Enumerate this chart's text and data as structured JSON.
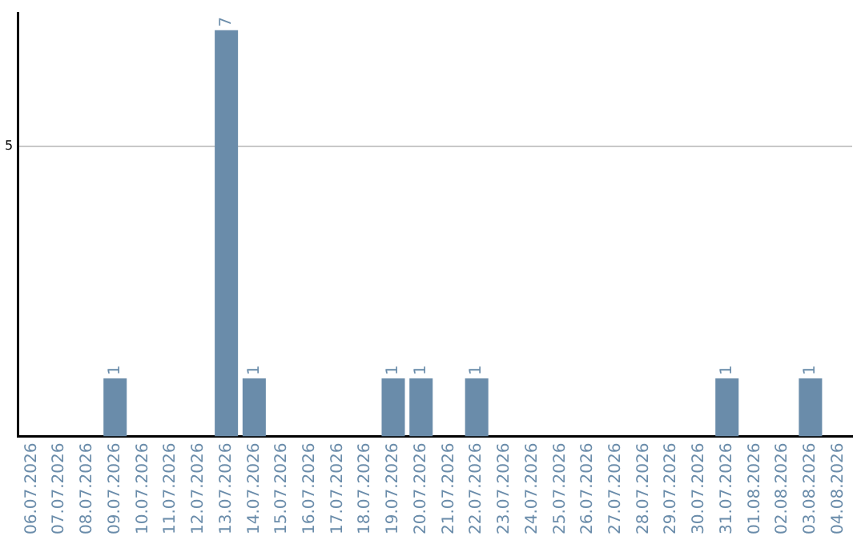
{
  "chart_data": {
    "type": "bar",
    "categories": [
      "06.07.2026",
      "07.07.2026",
      "08.07.2026",
      "09.07.2026",
      "10.07.2026",
      "11.07.2026",
      "12.07.2026",
      "13.07.2026",
      "14.07.2026",
      "15.07.2026",
      "16.07.2026",
      "17.07.2026",
      "18.07.2026",
      "19.07.2026",
      "20.07.2026",
      "21.07.2026",
      "22.07.2026",
      "23.07.2026",
      "24.07.2026",
      "25.07.2026",
      "26.07.2026",
      "27.07.2026",
      "28.07.2026",
      "29.07.2026",
      "30.07.2026",
      "31.07.2026",
      "01.08.2026",
      "02.08.2026",
      "03.08.2026",
      "04.08.2026"
    ],
    "values": [
      0,
      0,
      0,
      1,
      0,
      0,
      0,
      7,
      1,
      0,
      0,
      0,
      0,
      1,
      1,
      0,
      1,
      0,
      0,
      0,
      0,
      0,
      0,
      0,
      0,
      1,
      0,
      0,
      1,
      0
    ],
    "value_labels": [
      null,
      null,
      null,
      "1",
      null,
      null,
      null,
      "7",
      "1",
      null,
      null,
      null,
      null,
      "1",
      "1",
      null,
      "1",
      null,
      null,
      null,
      null,
      null,
      null,
      null,
      null,
      "1",
      null,
      null,
      "1",
      null
    ],
    "color": "#6a8caa",
    "ylim": [
      0,
      7.3
    ],
    "yticks": [
      5
    ],
    "grid": "y",
    "legend": false
  }
}
